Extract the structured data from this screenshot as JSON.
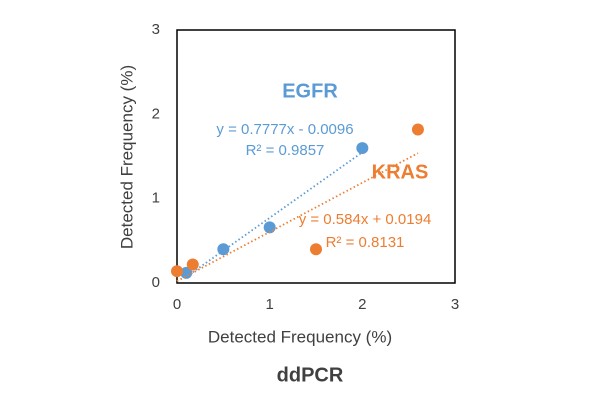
{
  "chart_data": {
    "type": "scatter",
    "xlabel": "Detected Frequency (%)",
    "ylabel": "Detected Frequency (%)",
    "subtitle": "ddPCR",
    "xlim": [
      0,
      3
    ],
    "xticks": [
      0,
      1,
      2,
      3
    ],
    "ylim": [
      0,
      3
    ],
    "yticks": [
      0,
      1,
      2,
      3
    ],
    "grid": false,
    "series": [
      {
        "name": "EGFR",
        "color": "#5b9bd5",
        "x": [
          0.1,
          0.5,
          1.0,
          2.0
        ],
        "values": [
          0.12,
          0.4,
          0.66,
          1.6
        ],
        "trendline": true,
        "equation": "y = 0.7777x - 0.0096",
        "r2": "R² = 0.9857"
      },
      {
        "name": "KRAS",
        "color": "#ed7d31",
        "x": [
          0,
          0.17,
          1.5,
          2.6
        ],
        "values": [
          0.14,
          0.22,
          0.4,
          1.82
        ],
        "trendline": true,
        "equation": "y = 0.584x + 0.0194",
        "r2": "R² = 0.8131"
      }
    ]
  }
}
